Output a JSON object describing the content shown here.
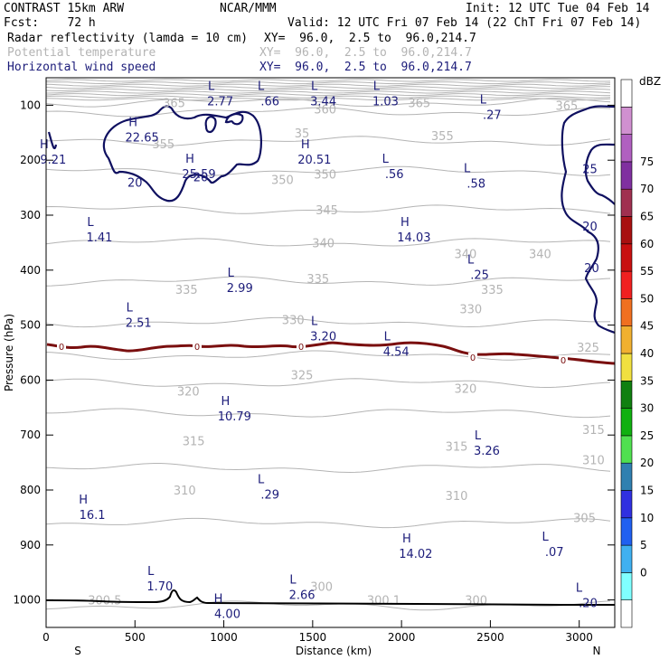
{
  "header": {
    "left_line1": "CONTRAST 15km ARW",
    "left_line2": "Fcst:    72 h",
    "center_line1": "NCAR/MMM",
    "init": "Init: 12 UTC Tue 04 Feb 14",
    "valid": "Valid: 12 UTC Fri 07 Feb 14 (22 ChT Fri 07 Feb 14)",
    "fields": [
      {
        "name": "Radar reflectivity (lamda = 10 cm)",
        "xy": "XY=  96.0,  2.5 to  96.0,214.7",
        "color": "#000000"
      },
      {
        "name": "Potential temperature",
        "xy": "XY=  96.0,  2.5 to  96.0,214.7",
        "color": "#b4b4b4"
      },
      {
        "name": "Horizontal wind speed",
        "xy": "XY=  96.0,  2.5 to  96.0,214.7",
        "color": "#1c1c7a"
      }
    ]
  },
  "chart_data": {
    "type": "contour",
    "xlabel": "Distance (km)",
    "ylabel": "Pressure (hPa)",
    "xlim": [
      0,
      3200
    ],
    "ylim": [
      1050,
      50
    ],
    "x_ticks": [
      0,
      500,
      1000,
      1500,
      2000,
      2500,
      3000
    ],
    "y_ticks": [
      100,
      200,
      300,
      400,
      500,
      600,
      700,
      800,
      900,
      1000
    ],
    "x_end_labels": {
      "left": "S",
      "right": "N"
    },
    "theta_contours": [
      {
        "value": "300",
        "p": 1010
      },
      {
        "value": "305",
        "p": 860
      },
      {
        "value": "310",
        "p": 760
      },
      {
        "value": "315",
        "p": 660
      },
      {
        "value": "320",
        "p": 605
      },
      {
        "value": "325",
        "p": 555
      },
      {
        "value": "330",
        "p": 495
      },
      {
        "value": "335",
        "p": 420
      },
      {
        "value": "340",
        "p": 350
      },
      {
        "value": "345",
        "p": 290
      },
      {
        "value": "350",
        "p": 220
      },
      {
        "value": "355",
        "p": 165
      },
      {
        "value": "360",
        "p": 112
      },
      {
        "value": "365",
        "p": 95
      }
    ],
    "theta_labels": [
      {
        "text": "365",
        "x": 720,
        "p": 95
      },
      {
        "text": "365",
        "x": 2100,
        "p": 95
      },
      {
        "text": "365",
        "x": 2930,
        "p": 100
      },
      {
        "text": "360",
        "x": 1570,
        "p": 107
      },
      {
        "text": "35",
        "x": 1440,
        "p": 150
      },
      {
        "text": "355",
        "x": 2230,
        "p": 155
      },
      {
        "text": "355",
        "x": 660,
        "p": 170
      },
      {
        "text": "350",
        "x": 1570,
        "p": 225
      },
      {
        "text": "350",
        "x": 1330,
        "p": 235
      },
      {
        "text": "345",
        "x": 1580,
        "p": 290
      },
      {
        "text": "340",
        "x": 1560,
        "p": 350
      },
      {
        "text": "340",
        "x": 2780,
        "p": 370
      },
      {
        "text": "340",
        "x": 2360,
        "p": 370
      },
      {
        "text": "335",
        "x": 790,
        "p": 435
      },
      {
        "text": "335",
        "x": 1530,
        "p": 415
      },
      {
        "text": "335",
        "x": 2510,
        "p": 435
      },
      {
        "text": "330",
        "x": 1390,
        "p": 490
      },
      {
        "text": "330",
        "x": 2390,
        "p": 470
      },
      {
        "text": "325",
        "x": 1440,
        "p": 590
      },
      {
        "text": "325",
        "x": 3050,
        "p": 540
      },
      {
        "text": "320",
        "x": 800,
        "p": 620
      },
      {
        "text": "320",
        "x": 2360,
        "p": 615
      },
      {
        "text": "315",
        "x": 830,
        "p": 710
      },
      {
        "text": "315",
        "x": 2310,
        "p": 720
      },
      {
        "text": "315",
        "x": 3080,
        "p": 690
      },
      {
        "text": "310",
        "x": 780,
        "p": 800
      },
      {
        "text": "310",
        "x": 2310,
        "p": 810
      },
      {
        "text": "310",
        "x": 3080,
        "p": 745
      },
      {
        "text": "305",
        "x": 3030,
        "p": 850
      },
      {
        "text": "300.5",
        "x": 330,
        "p": 1000
      },
      {
        "text": "300",
        "x": 1550,
        "p": 975
      },
      {
        "text": "300.1",
        "x": 1900,
        "p": 1000
      },
      {
        "text": "300",
        "x": 2420,
        "p": 1000
      }
    ],
    "wind_contour_labels": [
      {
        "text": "20",
        "x": 500,
        "p": 240
      },
      {
        "text": "20",
        "x": 870,
        "p": 230
      },
      {
        "text": "25",
        "x": 3060,
        "p": 215
      },
      {
        "text": "20",
        "x": 3060,
        "p": 320
      },
      {
        "text": "20",
        "x": 3070,
        "p": 395
      }
    ],
    "wind_extrema": [
      {
        "type": "L",
        "value": "2.77",
        "x": 980,
        "p": 72
      },
      {
        "type": "L",
        "value": ".66",
        "x": 1260,
        "p": 72
      },
      {
        "type": "L",
        "value": "3.44",
        "x": 1560,
        "p": 72
      },
      {
        "type": "L",
        "value": "1.03",
        "x": 1910,
        "p": 72
      },
      {
        "type": "L",
        "value": ".27",
        "x": 2510,
        "p": 97
      },
      {
        "type": "H",
        "value": "22.65",
        "x": 540,
        "p": 138
      },
      {
        "type": "H",
        "value": "9.21",
        "x": 40,
        "p": 178
      },
      {
        "type": "H",
        "value": "25.59",
        "x": 860,
        "p": 205
      },
      {
        "type": "H",
        "value": "20.51",
        "x": 1510,
        "p": 178
      },
      {
        "type": "L",
        "value": ".56",
        "x": 1960,
        "p": 205
      },
      {
        "type": "L",
        "value": ".58",
        "x": 2420,
        "p": 222
      },
      {
        "type": "L",
        "value": "1.41",
        "x": 300,
        "p": 320
      },
      {
        "type": "H",
        "value": "14.03",
        "x": 2070,
        "p": 320
      },
      {
        "type": "L",
        "value": ".25",
        "x": 2440,
        "p": 388
      },
      {
        "type": "L",
        "value": "2.99",
        "x": 1090,
        "p": 412
      },
      {
        "type": "L",
        "value": "2.51",
        "x": 520,
        "p": 475
      },
      {
        "type": "L",
        "value": "3.20",
        "x": 1560,
        "p": 500
      },
      {
        "type": "L",
        "value": "4.54",
        "x": 1970,
        "p": 528
      },
      {
        "type": "H",
        "value": "10.79",
        "x": 1060,
        "p": 645
      },
      {
        "type": "L",
        "value": "3.26",
        "x": 2480,
        "p": 708
      },
      {
        "type": "L",
        "value": ".29",
        "x": 1260,
        "p": 788
      },
      {
        "type": "H",
        "value": "16.1",
        "x": 260,
        "p": 825
      },
      {
        "type": "H",
        "value": "14.02",
        "x": 2080,
        "p": 895
      },
      {
        "type": "L",
        "value": ".07",
        "x": 2860,
        "p": 892
      },
      {
        "type": "L",
        "value": "1.70",
        "x": 640,
        "p": 955
      },
      {
        "type": "L",
        "value": "2.66",
        "x": 1440,
        "p": 970
      },
      {
        "type": "L",
        "value": ".20",
        "x": 3050,
        "p": 985
      },
      {
        "type": "H",
        "value": "4.00",
        "x": 1020,
        "p": 1005
      }
    ],
    "reflectivity_zero_label": "0",
    "reflectivity_zero_level_p": 545,
    "colorbar": {
      "title": "dBZ",
      "levels": [
        "0",
        "5",
        "10",
        "15",
        "20",
        "25",
        "30",
        "35",
        "40",
        "45",
        "50",
        "55",
        "60",
        "65",
        "70",
        "75"
      ],
      "colors": [
        "#ffffff",
        "#80ffff",
        "#40b0f0",
        "#2060f0",
        "#3030e0",
        "#3080b0",
        "#50e050",
        "#10b010",
        "#108010",
        "#f0e040",
        "#f0b030",
        "#f07020",
        "#f02020",
        "#c81010",
        "#a81010",
        "#a03050",
        "#8030a0",
        "#b060c0",
        "#d090d0",
        "#ffffff"
      ]
    }
  }
}
